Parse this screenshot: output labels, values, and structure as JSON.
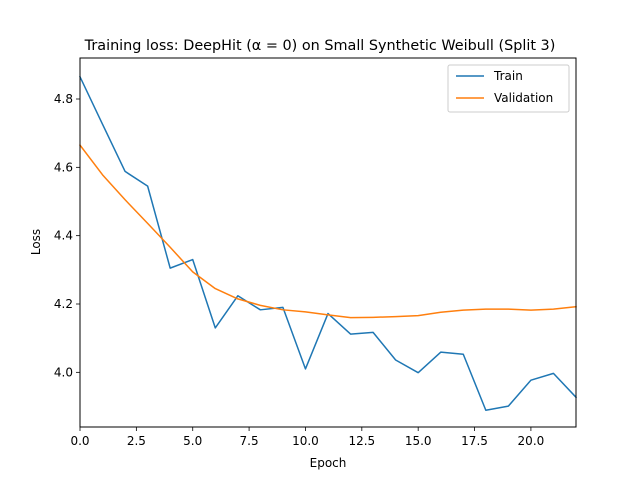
{
  "chart_data": {
    "type": "line",
    "title": "Training loss: DeepHit (α = 0) on Small Synthetic Weibull (Split 3)",
    "xlabel": "Epoch",
    "ylabel": "Loss",
    "xlim": [
      0,
      22
    ],
    "ylim": [
      3.84,
      4.92
    ],
    "xticks": [
      0,
      2.5,
      5,
      7.5,
      10,
      12.5,
      15,
      17.5,
      20
    ],
    "xtick_labels": [
      "0.0",
      "2.5",
      "5.0",
      "7.5",
      "10.0",
      "12.5",
      "15.0",
      "17.5",
      "20.0"
    ],
    "yticks": [
      4.0,
      4.2,
      4.4,
      4.6,
      4.8
    ],
    "ytick_labels": [
      "4.0",
      "4.2",
      "4.4",
      "4.6",
      "4.8"
    ],
    "grid": false,
    "legend_position": "top-right",
    "x": [
      0,
      1,
      2,
      3,
      4,
      5,
      6,
      7,
      8,
      9,
      10,
      11,
      12,
      13,
      14,
      15,
      16,
      17,
      18,
      19,
      20,
      21,
      22
    ],
    "series": [
      {
        "name": "Train",
        "color": "#1f77b4",
        "values": [
          4.865,
          4.726,
          4.588,
          4.545,
          4.305,
          4.33,
          4.13,
          4.224,
          4.183,
          4.19,
          4.01,
          4.172,
          4.112,
          4.117,
          4.036,
          3.999,
          4.059,
          4.053,
          3.889,
          3.901,
          3.977,
          3.997,
          3.927
        ]
      },
      {
        "name": "Validation",
        "color": "#ff7f0e",
        "values": [
          4.665,
          4.578,
          4.505,
          4.436,
          4.366,
          4.294,
          4.245,
          4.215,
          4.196,
          4.183,
          4.177,
          4.168,
          4.16,
          4.161,
          4.163,
          4.166,
          4.176,
          4.182,
          4.185,
          4.185,
          4.182,
          4.185,
          4.192
        ]
      }
    ]
  }
}
